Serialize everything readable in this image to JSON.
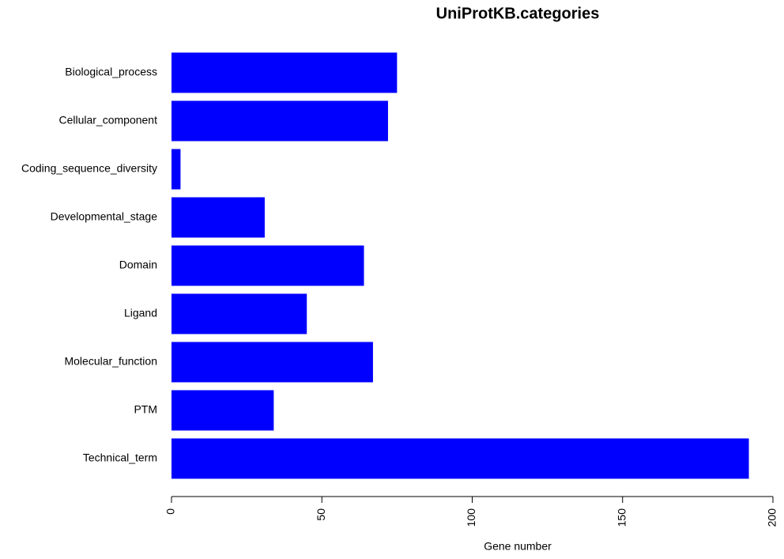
{
  "chart_data": {
    "type": "barh",
    "title": "UniProtKB.categories",
    "xlabel": "Gene number",
    "categories": [
      "Biological_process",
      "Cellular_component",
      "Coding_sequence_diversity",
      "Developmental_stage",
      "Domain",
      "Ligand",
      "Molecular_function",
      "PTM",
      "Technical_term"
    ],
    "values": [
      75,
      72,
      3,
      31,
      64,
      45,
      67,
      34,
      192
    ],
    "color": "#0000ff",
    "xlim": [
      0,
      200
    ],
    "xticks": [
      0,
      50,
      100,
      150,
      200
    ],
    "grid": false
  }
}
